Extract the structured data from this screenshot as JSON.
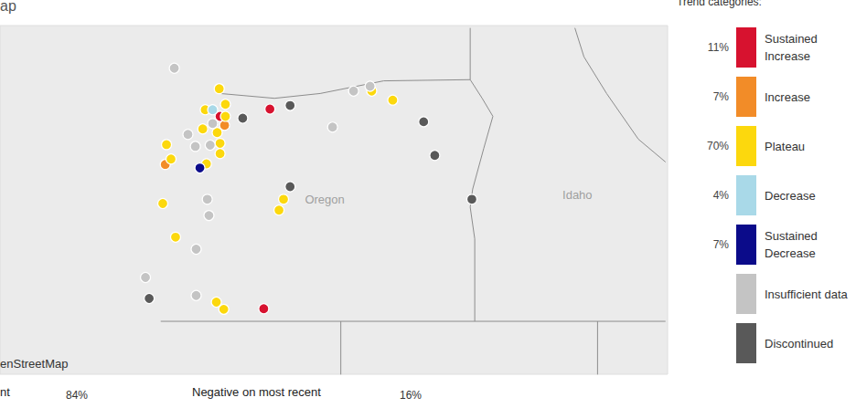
{
  "chart_data": {
    "type": "scatter",
    "title": "ap",
    "legend_title": "Trend categories:",
    "xlim": [
      -128.4,
      -112.2
    ],
    "ylim": [
      41.1,
      46.9
    ],
    "tick_labels": false,
    "grid": false,
    "series": [
      {
        "name": "Sustained Increase",
        "color": "#d7122f",
        "share": 11,
        "share_label": "11%",
        "x": [
          -123.06,
          -121.85,
          -122.0
        ],
        "values": [
          45.39,
          45.51,
          42.19
        ]
      },
      {
        "name": "Increase",
        "color": "#f28c28",
        "share": 7,
        "share_label": "7%",
        "x": [
          -122.95,
          -124.39
        ],
        "values": [
          45.24,
          44.59
        ]
      },
      {
        "name": "Plateau",
        "color": "#fcd80d",
        "share": 70,
        "share_label": "70%",
        "x": [
          -123.08,
          -123.42,
          -122.93,
          -122.93,
          -123.48,
          -123.13,
          -123.06,
          -123.06,
          -124.36,
          -124.25,
          -123.39,
          -119.38,
          -118.87,
          -121.52,
          -121.63,
          -124.45,
          -124.14,
          -123.15,
          -122.97
        ],
        "values": [
          45.85,
          45.5,
          45.59,
          45.39,
          45.18,
          45.12,
          44.94,
          44.77,
          44.92,
          44.68,
          44.6,
          45.81,
          45.66,
          44.01,
          43.83,
          43.94,
          43.38,
          42.3,
          42.18
        ]
      },
      {
        "name": "Decrease",
        "color": "#a9d9e8",
        "share": 4,
        "share_label": "4%",
        "x": [
          -123.24
        ],
        "values": [
          45.5
        ]
      },
      {
        "name": "Sustained Decrease",
        "color": "#0b0b8a",
        "share": 7,
        "share_label": "7%",
        "x": [
          -123.55
        ],
        "values": [
          44.53
        ]
      },
      {
        "name": "Insufficient data",
        "color": "#c4c4c4",
        "x": [
          -124.17,
          -123.24,
          -123.84,
          -123.66,
          -123.3,
          -120.33,
          -119.82,
          -119.42,
          -123.37,
          -123.33,
          -123.64,
          -124.87,
          -123.64
        ],
        "values": [
          46.19,
          45.27,
          45.09,
          44.89,
          44.91,
          45.21,
          45.81,
          45.89,
          44.01,
          43.74,
          43.18,
          42.71,
          42.41
        ]
      },
      {
        "name": "Discontinued",
        "color": "#595959",
        "x": [
          -122.51,
          -121.36,
          -118.12,
          -117.85,
          -116.95,
          -121.36,
          -124.78
        ],
        "values": [
          45.36,
          45.57,
          45.3,
          44.74,
          44.01,
          44.22,
          42.36
        ]
      }
    ],
    "boundaries": [
      [
        [
          -123.06,
          45.77
        ],
        [
          -121.74,
          45.69
        ],
        [
          -120.63,
          45.77
        ],
        [
          -119.09,
          45.98
        ],
        [
          -116.99,
          46.0
        ]
      ],
      [
        [
          -116.99,
          46.0
        ],
        [
          -116.99,
          46.86
        ]
      ],
      [
        [
          -116.99,
          46.0
        ],
        [
          -116.7,
          45.69
        ],
        [
          -116.44,
          45.39
        ],
        [
          -116.66,
          44.86
        ],
        [
          -116.93,
          44.18
        ],
        [
          -116.99,
          43.88
        ],
        [
          -116.88,
          43.35
        ],
        [
          -116.88,
          41.98
        ]
      ],
      [
        [
          -124.5,
          41.98
        ],
        [
          -112.25,
          41.98
        ]
      ],
      [
        [
          -120.13,
          41.98
        ],
        [
          -120.13,
          41.09
        ]
      ],
      [
        [
          -113.9,
          41.98
        ],
        [
          -113.9,
          41.09
        ]
      ],
      [
        [
          -114.45,
          46.86
        ],
        [
          -114.23,
          46.38
        ],
        [
          -113.68,
          45.77
        ],
        [
          -112.91,
          45.01
        ],
        [
          -112.25,
          44.63
        ]
      ]
    ],
    "annotations": [
      {
        "text": "Oregon",
        "x": -120.52,
        "y": 44.01
      },
      {
        "text": "Idaho",
        "x": -114.39,
        "y": 44.09
      }
    ],
    "attribution": "enStreetMap",
    "footer": [
      {
        "label": "nt",
        "value": 84,
        "value_label": "84%"
      },
      {
        "label": "Negative on most recent",
        "value": 16,
        "value_label": "16%"
      }
    ]
  }
}
